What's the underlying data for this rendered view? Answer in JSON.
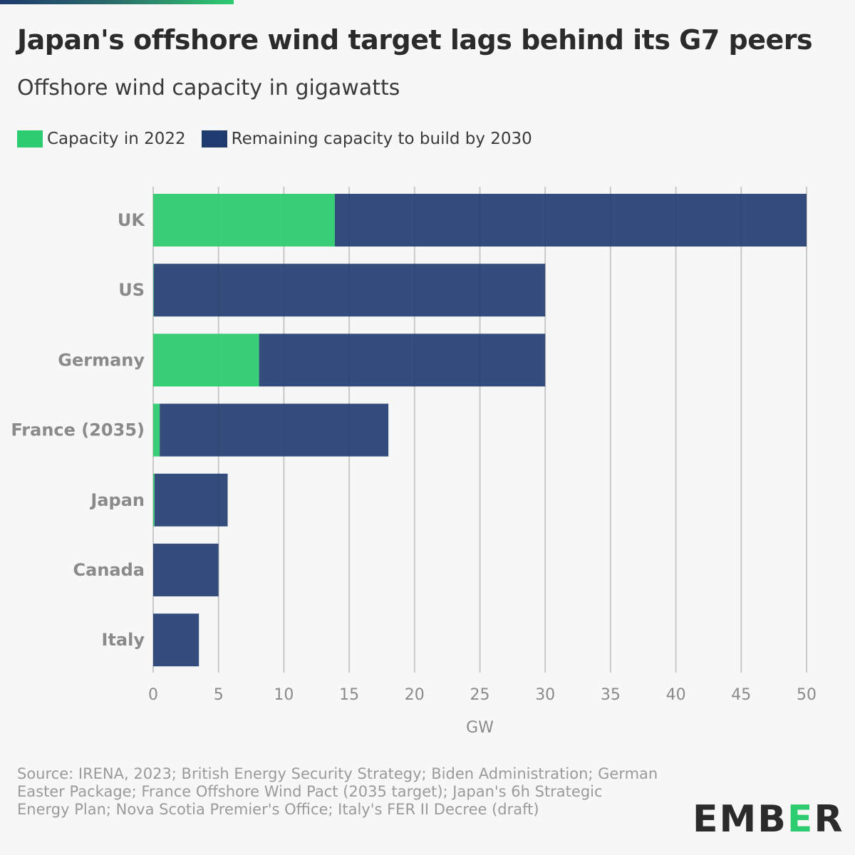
{
  "title": "Japan's offshore wind target lags behind its G7 peers",
  "subtitle": "Offshore wind capacity in gigawatts",
  "legend": [
    {
      "label": "Capacity in 2022",
      "color": "#2ecc71"
    },
    {
      "label": "Remaining capacity to build by 2030",
      "color": "#1e3a6e"
    }
  ],
  "source": "Source: IRENA, 2023; British Energy Security Strategy; Biden Administration; German Easter Package; France Offshore Wind Pact (2035 target); Japan's 6h Strategic Energy Plan; Nova Scotia Premier's Office; Italy's FER II Decree (draft)",
  "logo": {
    "part1": "EMB",
    "part2": "E",
    "part3": "R"
  },
  "chart_data": {
    "type": "bar",
    "orientation": "horizontal",
    "stacked": true,
    "categories": [
      "UK",
      "US",
      "Germany",
      "France (2035)",
      "Japan",
      "Canada",
      "Italy"
    ],
    "series": [
      {
        "name": "Capacity in 2022",
        "color": "#2ecc71",
        "values": [
          13.9,
          0.04,
          8.1,
          0.5,
          0.1,
          0,
          0
        ]
      },
      {
        "name": "Remaining capacity to build by 2030",
        "color": "#1e3a6e",
        "values": [
          36.1,
          29.96,
          21.9,
          17.5,
          5.6,
          5,
          3.5
        ]
      }
    ],
    "xlabel": "GW",
    "xlim": [
      0,
      50
    ],
    "xticks": [
      0,
      5,
      10,
      15,
      20,
      25,
      30,
      35,
      40,
      45,
      50
    ],
    "grid": true,
    "legend_position": "top-left"
  }
}
